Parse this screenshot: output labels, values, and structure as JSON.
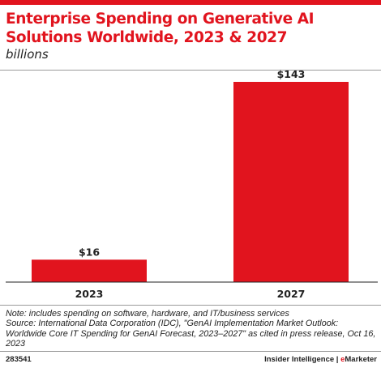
{
  "header": {
    "title": "Enterprise Spending on Generative AI Solutions Worldwide, 2023 & 2027",
    "subtitle": "billions"
  },
  "chart_data": {
    "type": "bar",
    "categories": [
      "2023",
      "2027"
    ],
    "values": [
      16,
      143
    ],
    "data_labels": [
      "$16",
      "$143"
    ],
    "title": "Enterprise Spending on Generative AI Solutions Worldwide, 2023 & 2027",
    "ylabel": "billions",
    "ylim": [
      0,
      143
    ],
    "grid": false,
    "legend": "none",
    "bar_color": "#e1141e"
  },
  "notes": {
    "note": "Note: includes spending on software, hardware, and IT/business services",
    "source": "Source: International Data Corporation (IDC), \"GenAI Implementation Market Outlook: Worldwide Core IT Spending for GenAI Forecast, 2023–2027\" as cited in press release, Oct 16, 2023"
  },
  "footer": {
    "chart_id": "283541",
    "brand_prefix": "Insider Intelligence | ",
    "brand_e": "e",
    "brand_suffix": "Marketer"
  },
  "colors": {
    "accent": "#e1141e",
    "text": "#222222",
    "rule": "#9a9a9a"
  }
}
